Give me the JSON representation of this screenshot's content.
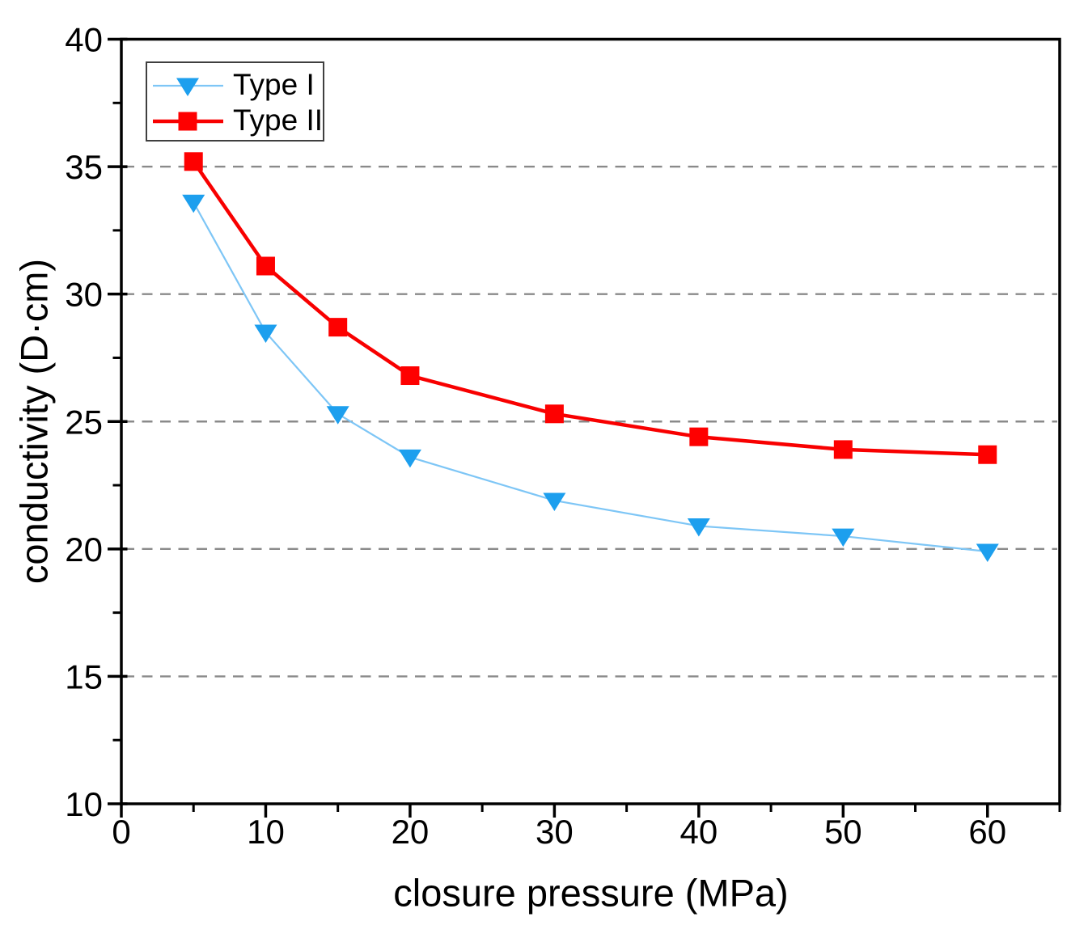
{
  "chart_data": {
    "type": "line",
    "title": "",
    "xlabel": "closure pressure (MPa)",
    "ylabel": "conductivity (D·cm)",
    "xlim": [
      0,
      65
    ],
    "ylim": [
      10,
      40
    ],
    "x": [
      5,
      10,
      15,
      20,
      30,
      40,
      50,
      60
    ],
    "series": [
      {
        "name": "Type I",
        "marker": "triangle-down",
        "marker_color": "#1D9FEE",
        "line_color": "#7EC6F6",
        "line_width": 2.2,
        "values": [
          33.6,
          28.5,
          25.3,
          23.6,
          21.9,
          20.9,
          20.5,
          19.9
        ]
      },
      {
        "name": "Type II",
        "marker": "square",
        "marker_color": "#FE0000",
        "line_color": "#F80000",
        "line_width": 4.5,
        "values": [
          35.2,
          31.1,
          28.7,
          26.8,
          25.3,
          24.4,
          23.9,
          23.7
        ]
      }
    ],
    "xticks_major": [
      0,
      10,
      20,
      30,
      40,
      50,
      60
    ],
    "xticks_minor": [
      5,
      15,
      25,
      35,
      45,
      55,
      65
    ],
    "yticks_major": [
      10,
      15,
      20,
      25,
      30,
      35,
      40
    ],
    "yticks_minor": [
      12.5,
      17.5,
      22.5,
      27.5,
      32.5,
      37.5
    ],
    "gridlines_y": [
      15,
      20,
      25,
      30,
      35
    ],
    "grid_on": true,
    "grid_style": "dashed",
    "grid_color": "#8A8A8A",
    "axis_color": "#000000",
    "background_color": "#FFFFFF",
    "legend": {
      "position": "top-left",
      "labels": [
        "Type I",
        "Type II"
      ]
    }
  }
}
